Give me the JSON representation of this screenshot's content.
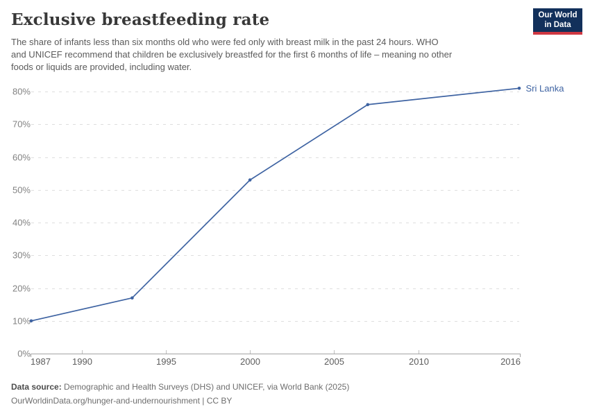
{
  "header": {
    "title": "Exclusive breastfeeding rate",
    "subtitle_lines": [
      "The share of infants less than six months old who were fed only with breast milk in the past 24 hours. WHO",
      "and UNICEF recommend that children be exclusively breastfed for the first 6 months of life – meaning no other",
      "foods or liquids are provided, including water."
    ],
    "logo": {
      "line1": "Our World",
      "line2": "in Data",
      "bg_color": "#12305b",
      "bar_color": "#cf3742"
    }
  },
  "chart_data": {
    "type": "line",
    "title": "Exclusive breastfeeding rate",
    "xlabel": "",
    "ylabel": "",
    "xlim": [
      1987,
      2016
    ],
    "ylim": [
      0,
      80
    ],
    "x_ticks": [
      1987,
      1990,
      1995,
      2000,
      2005,
      2010,
      2016
    ],
    "y_ticks": [
      "0%",
      "10%",
      "20%",
      "30%",
      "40%",
      "50%",
      "60%",
      "70%",
      "80%"
    ],
    "grid": "horizontal-dashed",
    "legend": "end-of-line-label",
    "series": [
      {
        "name": "Sri Lanka",
        "color": "#3e63a2",
        "points": [
          {
            "x": 1987,
            "y": 10
          },
          {
            "x": 1993,
            "y": 17
          },
          {
            "x": 2000,
            "y": 53
          },
          {
            "x": 2007,
            "y": 76
          },
          {
            "x": 2016,
            "y": 81
          }
        ]
      }
    ]
  },
  "footer": {
    "data_source_label": "Data source:",
    "data_source_text": "Demographic and Health Surveys (DHS) and UNICEF, via World Bank (2025)",
    "attribution": "OurWorldinData.org/hunger-and-undernourishment | CC BY"
  }
}
